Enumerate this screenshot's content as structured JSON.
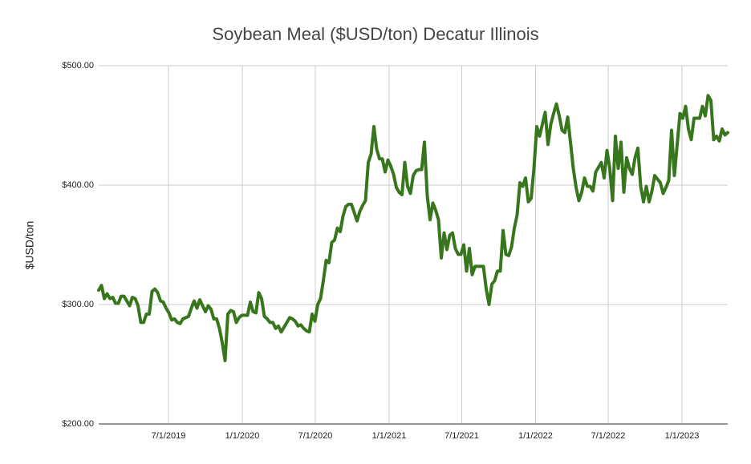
{
  "chart_data": {
    "type": "line",
    "title": "Soybean Meal ($USD/ton) Decatur Illinois",
    "y_label": "$USD/ton",
    "color": "#38761d",
    "grid": true,
    "xlim": [
      "2019-01-08",
      "2023-04-25"
    ],
    "xticks": [
      {
        "value": "2019-07-01",
        "label": "7/1/2019"
      },
      {
        "value": "2020-01-01",
        "label": "1/1/2020"
      },
      {
        "value": "2020-07-01",
        "label": "7/1/2020"
      },
      {
        "value": "2021-01-01",
        "label": "1/1/2021"
      },
      {
        "value": "2021-07-01",
        "label": "7/1/2021"
      },
      {
        "value": "2022-01-01",
        "label": "1/1/2022"
      },
      {
        "value": "2022-07-01",
        "label": "7/1/2022"
      },
      {
        "value": "2023-01-01",
        "label": "1/1/2023"
      }
    ],
    "ylim": [
      200,
      500
    ],
    "yticks": [
      {
        "value": 200,
        "label": "$200.00"
      },
      {
        "value": 300,
        "label": "$300.00"
      },
      {
        "value": 400,
        "label": "$400.00"
      },
      {
        "value": 500,
        "label": "$500.00"
      }
    ],
    "x": [
      "2019-01-08",
      "2019-01-15",
      "2019-01-22",
      "2019-01-29",
      "2019-02-05",
      "2019-02-12",
      "2019-02-19",
      "2019-02-26",
      "2019-03-05",
      "2019-03-12",
      "2019-03-19",
      "2019-03-26",
      "2019-04-02",
      "2019-04-09",
      "2019-04-16",
      "2019-04-23",
      "2019-04-30",
      "2019-05-07",
      "2019-05-14",
      "2019-05-21",
      "2019-05-28",
      "2019-06-04",
      "2019-06-11",
      "2019-06-18",
      "2019-06-25",
      "2019-07-02",
      "2019-07-09",
      "2019-07-16",
      "2019-07-23",
      "2019-07-30",
      "2019-08-06",
      "2019-08-13",
      "2019-08-20",
      "2019-08-27",
      "2019-09-03",
      "2019-09-10",
      "2019-09-17",
      "2019-09-24",
      "2019-10-01",
      "2019-10-08",
      "2019-10-15",
      "2019-10-22",
      "2019-10-29",
      "2019-11-05",
      "2019-11-12",
      "2019-11-19",
      "2019-11-26",
      "2019-12-03",
      "2019-12-10",
      "2019-12-17",
      "2019-12-24",
      "2019-12-31",
      "2020-01-07",
      "2020-01-14",
      "2020-01-21",
      "2020-01-28",
      "2020-02-04",
      "2020-02-11",
      "2020-02-18",
      "2020-02-25",
      "2020-03-03",
      "2020-03-10",
      "2020-03-17",
      "2020-03-24",
      "2020-03-31",
      "2020-04-07",
      "2020-04-14",
      "2020-04-21",
      "2020-04-28",
      "2020-05-05",
      "2020-05-12",
      "2020-05-19",
      "2020-05-26",
      "2020-06-02",
      "2020-06-09",
      "2020-06-16",
      "2020-06-23",
      "2020-06-30",
      "2020-07-07",
      "2020-07-14",
      "2020-07-21",
      "2020-07-28",
      "2020-08-04",
      "2020-08-11",
      "2020-08-18",
      "2020-08-25",
      "2020-09-01",
      "2020-09-08",
      "2020-09-15",
      "2020-09-22",
      "2020-09-29",
      "2020-10-06",
      "2020-10-13",
      "2020-10-20",
      "2020-10-27",
      "2020-11-03",
      "2020-11-10",
      "2020-11-17",
      "2020-11-24",
      "2020-12-01",
      "2020-12-08",
      "2020-12-15",
      "2020-12-22",
      "2020-12-29",
      "2021-01-05",
      "2021-01-12",
      "2021-01-19",
      "2021-01-26",
      "2021-02-02",
      "2021-02-09",
      "2021-02-16",
      "2021-02-23",
      "2021-03-02",
      "2021-03-09",
      "2021-03-16",
      "2021-03-23",
      "2021-03-30",
      "2021-04-06",
      "2021-04-13",
      "2021-04-20",
      "2021-04-27",
      "2021-05-04",
      "2021-05-11",
      "2021-05-18",
      "2021-05-25",
      "2021-06-01",
      "2021-06-08",
      "2021-06-15",
      "2021-06-22",
      "2021-06-29",
      "2021-07-06",
      "2021-07-13",
      "2021-07-20",
      "2021-07-27",
      "2021-08-03",
      "2021-08-10",
      "2021-08-17",
      "2021-08-24",
      "2021-08-31",
      "2021-09-07",
      "2021-09-14",
      "2021-09-21",
      "2021-09-28",
      "2021-10-05",
      "2021-10-12",
      "2021-10-19",
      "2021-10-26",
      "2021-11-02",
      "2021-11-09",
      "2021-11-16",
      "2021-11-23",
      "2021-11-30",
      "2021-12-07",
      "2021-12-14",
      "2021-12-21",
      "2021-12-28",
      "2022-01-04",
      "2022-01-11",
      "2022-01-18",
      "2022-01-25",
      "2022-02-01",
      "2022-02-08",
      "2022-02-15",
      "2022-02-22",
      "2022-03-01",
      "2022-03-08",
      "2022-03-15",
      "2022-03-22",
      "2022-03-29",
      "2022-04-05",
      "2022-04-12",
      "2022-04-19",
      "2022-04-26",
      "2022-05-03",
      "2022-05-10",
      "2022-05-17",
      "2022-05-24",
      "2022-05-31",
      "2022-06-07",
      "2022-06-14",
      "2022-06-21",
      "2022-06-28",
      "2022-07-05",
      "2022-07-12",
      "2022-07-19",
      "2022-07-26",
      "2022-08-02",
      "2022-08-09",
      "2022-08-16",
      "2022-08-23",
      "2022-08-30",
      "2022-09-06",
      "2022-09-13",
      "2022-09-20",
      "2022-09-27",
      "2022-10-04",
      "2022-10-11",
      "2022-10-18",
      "2022-10-25",
      "2022-11-01",
      "2022-11-08",
      "2022-11-15",
      "2022-11-22",
      "2022-11-29",
      "2022-12-06",
      "2022-12-13",
      "2022-12-20",
      "2022-12-27",
      "2023-01-03",
      "2023-01-10",
      "2023-01-17",
      "2023-01-24",
      "2023-01-31",
      "2023-02-07",
      "2023-02-14",
      "2023-02-21",
      "2023-02-28",
      "2023-03-07",
      "2023-03-14",
      "2023-03-21",
      "2023-03-28",
      "2023-04-04",
      "2023-04-11",
      "2023-04-18",
      "2023-04-25"
    ],
    "values": [
      312,
      316,
      305,
      309,
      305,
      306,
      301,
      301,
      307,
      307,
      303,
      299,
      306,
      305,
      299,
      285,
      285,
      292,
      292,
      311,
      313,
      310,
      303,
      302,
      297,
      293,
      287,
      288,
      285,
      284,
      288,
      289,
      290,
      297,
      303,
      297,
      304,
      299,
      294,
      299,
      296,
      288,
      288,
      280,
      268,
      253,
      292,
      295,
      294,
      285,
      289,
      291,
      291,
      291,
      302,
      294,
      293,
      310,
      305,
      290,
      288,
      285,
      285,
      280,
      282,
      277,
      281,
      285,
      289,
      288,
      286,
      282,
      283,
      280,
      278,
      277,
      292,
      286,
      300,
      305,
      320,
      337,
      335,
      352,
      354,
      364,
      361,
      374,
      382,
      384,
      384,
      377,
      370,
      378,
      383,
      387,
      419,
      426,
      449,
      430,
      422,
      422,
      411,
      421,
      416,
      409,
      398,
      394,
      392,
      419,
      399,
      393,
      408,
      412,
      413,
      413,
      436,
      391,
      371,
      385,
      379,
      371,
      339,
      360,
      346,
      358,
      360,
      347,
      342,
      342,
      350,
      328,
      347,
      325,
      332,
      332,
      332,
      332,
      313,
      300,
      317,
      320,
      328,
      328,
      362,
      342,
      341,
      348,
      364,
      375,
      402,
      399,
      406,
      386,
      389,
      414,
      449,
      441,
      451,
      461,
      434,
      451,
      460,
      468,
      458,
      446,
      444,
      457,
      436,
      414,
      398,
      387,
      394,
      406,
      399,
      399,
      395,
      411,
      415,
      419,
      406,
      429,
      414,
      387,
      441,
      414,
      436,
      394,
      423,
      414,
      409,
      423,
      431,
      399,
      386,
      399,
      386,
      395,
      408,
      405,
      402,
      393,
      398,
      404,
      446,
      408,
      434,
      460,
      456,
      466,
      447,
      438,
      456,
      456,
      456,
      466,
      458,
      475,
      471,
      438,
      441,
      437,
      447,
      442,
      444
    ]
  }
}
